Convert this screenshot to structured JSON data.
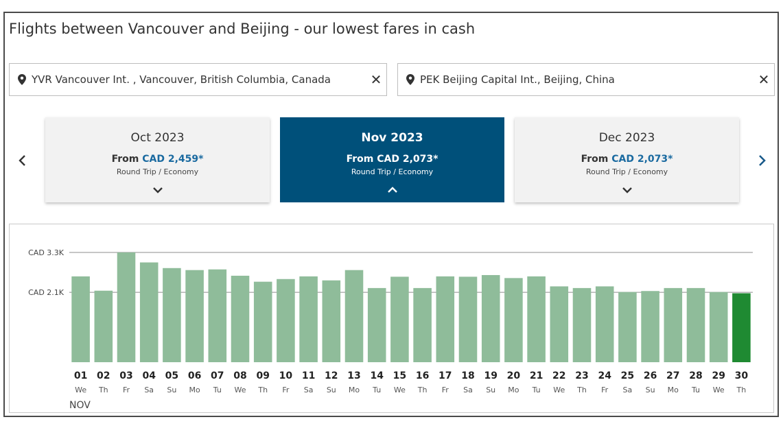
{
  "page": {
    "title": "Flights between Vancouver and Beijing - our lowest fares in cash"
  },
  "origin": {
    "icon": "map-pin-icon",
    "value": "YVR Vancouver Int. , Vancouver, British Columbia, Canada",
    "clear_symbol": "✕"
  },
  "destination": {
    "icon": "map-pin-icon",
    "value": "PEK Beijing Capital Int., Beijing, China",
    "clear_symbol": "✕"
  },
  "months": [
    {
      "month": "Oct 2023",
      "from_label": "From",
      "price": "CAD 2,459",
      "asterisk": "*",
      "fare_type": "Round Trip / Economy",
      "icon": "chevron-down-icon",
      "active": false
    },
    {
      "month": "Nov 2023",
      "from_label": "From",
      "price": "CAD 2,073",
      "asterisk": "*",
      "fare_type": "Round Trip / Economy",
      "icon": "chevron-up-icon",
      "active": true
    },
    {
      "month": "Dec 2023",
      "from_label": "From",
      "price": "CAD 2,073",
      "asterisk": "*",
      "fare_type": "Round Trip / Economy",
      "icon": "chevron-down-icon",
      "active": false
    }
  ],
  "nav": {
    "prev_icon": "chevron-left-icon",
    "next_icon": "chevron-right-icon"
  },
  "colors": {
    "active_card": "#00507a",
    "price_link": "#1a6aa0",
    "bar": "#8fbc9a",
    "bar_selected": "#1f8a32"
  },
  "chart_data": {
    "type": "bar",
    "month_label": "NOV",
    "y_ticks": [
      {
        "value": 3300,
        "label": "CAD 3.3K"
      },
      {
        "value": 2100,
        "label": "CAD 2.1K"
      }
    ],
    "ylim": [
      0,
      3300
    ],
    "grid": true,
    "selected_day": "30",
    "days": [
      "01",
      "02",
      "03",
      "04",
      "05",
      "06",
      "07",
      "08",
      "09",
      "10",
      "11",
      "12",
      "13",
      "14",
      "15",
      "16",
      "17",
      "18",
      "19",
      "20",
      "21",
      "22",
      "23",
      "24",
      "25",
      "26",
      "27",
      "28",
      "29",
      "30"
    ],
    "weekdays": [
      "We",
      "Th",
      "Fr",
      "Sa",
      "Su",
      "Mo",
      "Tu",
      "We",
      "Th",
      "Fr",
      "Sa",
      "Su",
      "Mo",
      "Tu",
      "We",
      "Th",
      "Fr",
      "Sa",
      "Su",
      "Mo",
      "Tu",
      "We",
      "Th",
      "Fr",
      "Sa",
      "Su",
      "Mo",
      "Tu",
      "We",
      "Th"
    ],
    "values": [
      2580,
      2150,
      3300,
      3000,
      2830,
      2770,
      2790,
      2600,
      2420,
      2500,
      2580,
      2460,
      2770,
      2230,
      2570,
      2230,
      2580,
      2570,
      2620,
      2530,
      2580,
      2280,
      2230,
      2280,
      2110,
      2140,
      2230,
      2230,
      2110,
      2073
    ]
  }
}
